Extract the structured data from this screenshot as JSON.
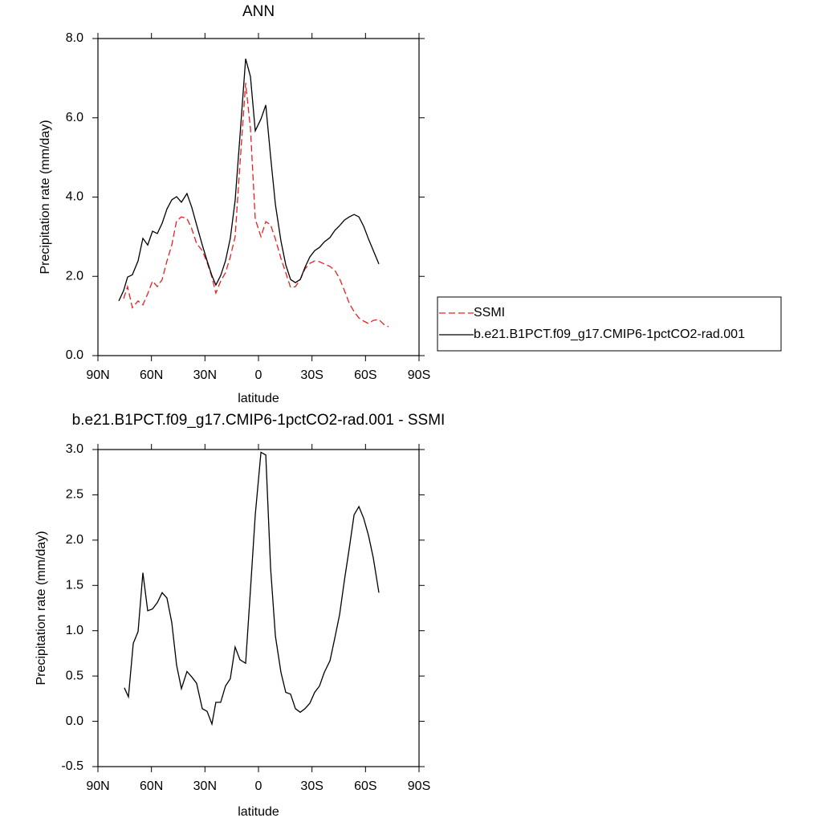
{
  "chart_data": [
    {
      "type": "line",
      "title": "ANN",
      "xlabel": "latitude",
      "ylabel": "Precipitation rate (mm/day)",
      "x": [
        78.3,
        75.6,
        73.4,
        70.7,
        67.5,
        64.8,
        62.1,
        59.4,
        56.7,
        54,
        51.3,
        48.6,
        45.9,
        43.2,
        40.1,
        37.4,
        34.7,
        31.5,
        28.8,
        26.1,
        23.9,
        21.2,
        18.5,
        15.8,
        13.1,
        10.4,
        7.2,
        4.5,
        1.8,
        -1.4,
        -4.1,
        -6.8,
        -9.5,
        -12.6,
        -15.3,
        -18,
        -20.7,
        -23.4,
        -26.1,
        -28.8,
        -31.5,
        -34.2,
        -36.9,
        -40.1,
        -42.8,
        -45.5,
        -48.2,
        -50.9,
        -53.6,
        -56.3,
        -59,
        -61.7,
        -64.4,
        -67.5,
        -70.2,
        -72.9
      ],
      "series": [
        {
          "name": "SSMI",
          "color": "#e8201e",
          "line_style": "dashed",
          "values": [
            null,
            1.44,
            1.74,
            1.21,
            1.38,
            1.28,
            1.56,
            1.88,
            1.74,
            1.92,
            2.39,
            2.79,
            3.4,
            3.5,
            3.46,
            3.2,
            2.83,
            2.65,
            2.35,
            1.98,
            1.58,
            1.88,
            2.09,
            2.49,
            3.0,
            4.82,
            6.88,
            5.73,
            3.44,
            3.0,
            3.38,
            3.3,
            2.94,
            2.45,
            2.09,
            1.72,
            1.74,
            1.92,
            2.19,
            2.33,
            2.39,
            2.37,
            2.31,
            2.25,
            2.15,
            1.94,
            1.64,
            1.32,
            1.11,
            0.95,
            0.87,
            0.81,
            0.89,
            0.91,
            0.79,
            0.73
          ]
        },
        {
          "name": "b.e21.B1PCT.f09_g17.CMIP6-1pctCO2-rad.001",
          "color": "#000000",
          "line_style": "solid",
          "values": [
            1.38,
            1.64,
            1.98,
            2.04,
            2.39,
            2.96,
            2.79,
            3.14,
            3.08,
            3.34,
            3.7,
            3.93,
            4.01,
            3.87,
            4.09,
            3.74,
            3.3,
            2.79,
            2.39,
            2.02,
            1.78,
            2.02,
            2.39,
            2.96,
            3.91,
            5.53,
            7.49,
            7.04,
            5.67,
            5.97,
            6.32,
            5.02,
            3.81,
            2.89,
            2.29,
            1.92,
            1.84,
            1.92,
            2.23,
            2.49,
            2.65,
            2.73,
            2.87,
            2.98,
            3.16,
            3.28,
            3.42,
            3.5,
            3.56,
            3.5,
            3.26,
            2.94,
            2.65,
            2.31,
            null,
            null
          ]
        }
      ],
      "xlim": [
        90,
        -90
      ],
      "xticks": [
        {
          "value": 90,
          "label": "90N"
        },
        {
          "value": 60,
          "label": "60N"
        },
        {
          "value": 30,
          "label": "30N"
        },
        0,
        {
          "value": -30,
          "label": "30S"
        },
        {
          "value": -60,
          "label": "60S"
        },
        {
          "value": -90,
          "label": "90S"
        }
      ],
      "ylim": [
        0,
        8
      ],
      "yticks": [
        {
          "value": 0,
          "label": "0.0"
        },
        {
          "value": 2,
          "label": "2.0"
        },
        {
          "value": 4,
          "label": "4.0"
        },
        {
          "value": 6,
          "label": "6.0"
        },
        {
          "value": 8,
          "label": "8.0"
        }
      ],
      "legend": "right"
    },
    {
      "type": "line",
      "title": "b.e21.B1PCT.f09_g17.CMIP6-1pctCO2-rad.001 - SSMI",
      "xlabel": "latitude",
      "ylabel": "Precipitation rate (mm/day)",
      "x": [
        75.2,
        72.9,
        70.2,
        67.5,
        64.8,
        62.1,
        59.4,
        56.7,
        54,
        51.3,
        48.6,
        45.9,
        43.2,
        40.1,
        37.4,
        34.7,
        31.5,
        28.8,
        26.1,
        23.9,
        21.2,
        18.5,
        15.8,
        13.1,
        10.4,
        7.2,
        4.5,
        1.8,
        -1.4,
        -4.1,
        -6.8,
        -9.5,
        -12.6,
        -15.3,
        -18,
        -20.7,
        -23.4,
        -26.1,
        -28.8,
        -31.5,
        -34.2,
        -36.9,
        -40.1,
        -42.8,
        -45.5,
        -48.2,
        -50.9,
        -53.6,
        -56.3,
        -59,
        -61.7,
        -64.4,
        -67.5
      ],
      "values": [
        0.37,
        0.27,
        0.86,
        0.99,
        1.64,
        1.22,
        1.24,
        1.31,
        1.42,
        1.36,
        1.09,
        0.62,
        0.36,
        0.55,
        0.49,
        0.42,
        0.14,
        0.11,
        -0.03,
        0.21,
        0.21,
        0.39,
        0.47,
        0.82,
        0.68,
        0.64,
        1.45,
        2.28,
        2.97,
        2.94,
        1.69,
        0.94,
        0.54,
        0.32,
        0.3,
        0.14,
        0.1,
        0.14,
        0.2,
        0.32,
        0.39,
        0.54,
        0.67,
        0.92,
        1.18,
        1.56,
        1.91,
        2.28,
        2.37,
        2.24,
        2.05,
        1.8,
        1.42
      ],
      "color": "#000000",
      "xlim": [
        90,
        -90
      ],
      "xticks": [
        {
          "value": 90,
          "label": "90N"
        },
        {
          "value": 60,
          "label": "60N"
        },
        {
          "value": 30,
          "label": "30N"
        },
        0,
        {
          "value": -30,
          "label": "30S"
        },
        {
          "value": -60,
          "label": "60S"
        },
        {
          "value": -90,
          "label": "90S"
        }
      ],
      "ylim": [
        -0.5,
        3.0
      ],
      "yticks": [
        {
          "value": -0.5,
          "label": "-0.5"
        },
        {
          "value": 0,
          "label": "0.0"
        },
        {
          "value": 0.5,
          "label": "0.5"
        },
        {
          "value": 1,
          "label": "1.0"
        },
        {
          "value": 1.5,
          "label": "1.5"
        },
        {
          "value": 2,
          "label": "2.0"
        },
        {
          "value": 2.5,
          "label": "2.5"
        },
        {
          "value": 3,
          "label": "3.0"
        }
      ]
    }
  ]
}
